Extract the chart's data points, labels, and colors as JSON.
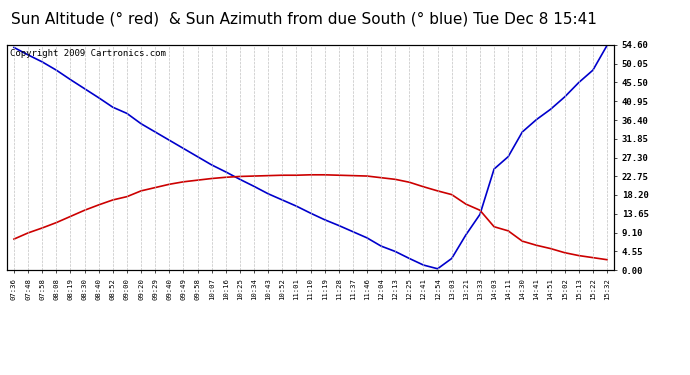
{
  "title": "Sun Altitude (° red)  & Sun Azimuth from due South (° blue) Tue Dec 8 15:41",
  "copyright": "Copyright 2009 Cartronics.com",
  "ylabel_right_ticks": [
    0.0,
    4.55,
    9.1,
    13.65,
    18.2,
    22.75,
    27.3,
    31.85,
    36.4,
    40.95,
    45.5,
    50.05,
    54.6
  ],
  "ylim": [
    0.0,
    54.6
  ],
  "x_labels": [
    "07:36",
    "07:48",
    "07:58",
    "08:08",
    "08:19",
    "08:30",
    "08:40",
    "08:52",
    "09:00",
    "09:20",
    "09:29",
    "09:40",
    "09:49",
    "09:58",
    "10:07",
    "10:16",
    "10:25",
    "10:34",
    "10:43",
    "10:52",
    "11:01",
    "11:10",
    "11:19",
    "11:28",
    "11:37",
    "11:46",
    "12:04",
    "12:13",
    "12:25",
    "12:41",
    "12:54",
    "13:03",
    "13:21",
    "13:33",
    "14:03",
    "14:11",
    "14:30",
    "14:41",
    "14:51",
    "15:02",
    "15:13",
    "15:22",
    "15:32"
  ],
  "blue_y": [
    54.0,
    52.2,
    50.5,
    48.5,
    46.2,
    44.0,
    41.8,
    39.5,
    38.0,
    35.5,
    33.5,
    31.5,
    29.5,
    27.5,
    25.5,
    23.8,
    22.0,
    20.3,
    18.5,
    17.0,
    15.5,
    13.8,
    12.2,
    10.8,
    9.3,
    7.8,
    5.8,
    4.5,
    2.8,
    1.2,
    0.3,
    2.8,
    8.5,
    13.5,
    24.5,
    27.5,
    33.5,
    36.5,
    39.0,
    42.0,
    45.5,
    48.5,
    54.5
  ],
  "red_y": [
    7.5,
    9.0,
    10.2,
    11.5,
    13.0,
    14.5,
    15.8,
    17.0,
    17.8,
    19.2,
    20.0,
    20.8,
    21.4,
    21.8,
    22.2,
    22.5,
    22.7,
    22.8,
    22.9,
    23.0,
    23.0,
    23.1,
    23.1,
    23.0,
    22.9,
    22.8,
    22.4,
    22.0,
    21.3,
    20.2,
    19.2,
    18.3,
    16.0,
    14.5,
    10.5,
    9.5,
    7.0,
    6.0,
    5.2,
    4.2,
    3.5,
    3.0,
    2.5
  ],
  "blue_color": "#0000cc",
  "red_color": "#cc0000",
  "bg_color": "#ffffff",
  "grid_color": "#bbbbbb",
  "title_fontsize": 11,
  "copyright_fontsize": 6.5
}
